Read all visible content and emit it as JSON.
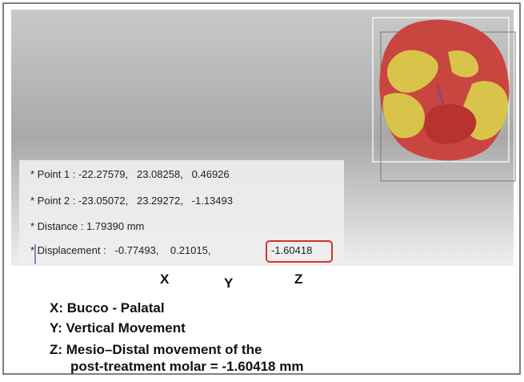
{
  "measurements": [
    "* Point 1 : -22.27579,   23.08258,   0.46926",
    "* Point 2 : -23.05072,   23.29272,   -1.13493",
    "* Distance : 1.79390 mm"
  ],
  "displacement": {
    "text": "* Displacement :   -0.77493,    0.21015,",
    "z": "-1.60418"
  },
  "axes": [
    "X",
    "Y",
    "Z"
  ],
  "legend": [
    "X: Bucco - Palatal",
    "Y: Vertical Movement",
    "Z: Mesio–Distal movement of the",
    "post-treatment molar = -1.60418 mm"
  ]
}
